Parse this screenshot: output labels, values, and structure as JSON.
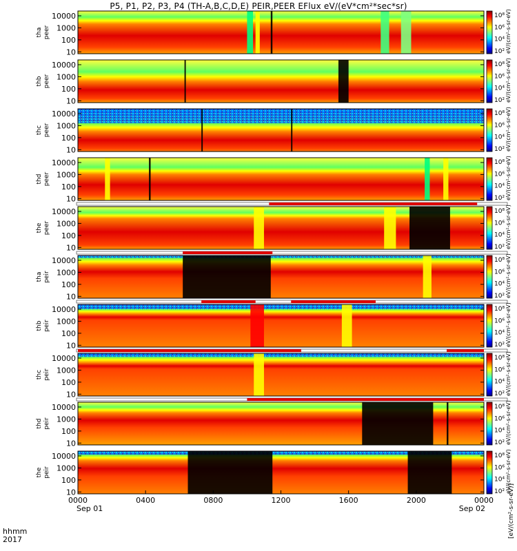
{
  "title": "P5, P1, P2, P3, P4 (TH-A,B,C,D,E) PEIR,PEER EFlux eV/(eV*cm²*sec*sr)",
  "colors": {
    "jet": [
      "#000080",
      "#0000ff",
      "#0080ff",
      "#00ffff",
      "#80ff80",
      "#ffff00",
      "#ff8000",
      "#ff0000",
      "#800000"
    ],
    "flag": "#dd0000",
    "background": "#ffffff"
  },
  "x_axis": {
    "row1_label": "hhmm",
    "row2_label": "2017",
    "ticks": [
      "0000",
      "0400",
      "0800",
      "1200",
      "1600",
      "2000",
      "0000"
    ],
    "date_labels": [
      "Sep 01",
      "Sep 02"
    ]
  },
  "colorbar": {
    "unit_label": "eV/(cm²-s-sr-eV)",
    "side_label": "[eV/(cm²-s-sr-eV)]",
    "tick_labels": [
      "10⁸",
      "10⁶",
      "10⁴",
      "10²"
    ]
  },
  "chart_data": {
    "type": "heatmap",
    "x_range_hours": [
      0,
      24
    ],
    "y_scale": "log",
    "y_range_eV": [
      7,
      25000
    ],
    "y_ticks": [
      "10000",
      "1000",
      "100",
      "10"
    ],
    "panels": [
      {
        "probe": "tha",
        "species": "peer",
        "ylabel_1": "tha",
        "ylabel_2": "peer",
        "core_top_log": 3.3,
        "core_bot_log": 1.4,
        "green_log": 3.9,
        "noisy": false,
        "flags": [],
        "features": [
          [
            10.0,
            0.35,
            "#00ff80"
          ],
          [
            10.5,
            0.25,
            "#ffff00"
          ],
          [
            11.4,
            0.1,
            "#000000"
          ],
          [
            17.9,
            0.5,
            "#40ff80"
          ],
          [
            19.1,
            0.6,
            "#80ff80"
          ]
        ]
      },
      {
        "probe": "thb",
        "species": "peer",
        "ylabel_1": "thb",
        "ylabel_2": "peer",
        "core_top_log": 2.6,
        "core_bot_log": 1.2,
        "green_log": 3.4,
        "noisy": false,
        "flags": [],
        "features": [
          [
            6.3,
            0.08,
            "#000000"
          ],
          [
            15.4,
            0.6,
            "#000000"
          ]
        ]
      },
      {
        "probe": "thc",
        "species": "peer",
        "ylabel_1": "thc",
        "ylabel_2": "peer",
        "core_top_log": 2.5,
        "core_bot_log": 1.1,
        "green_log": 3.2,
        "noisy": true,
        "flags": [],
        "features": [
          [
            7.3,
            0.08,
            "#000000"
          ],
          [
            12.6,
            0.08,
            "#000000"
          ]
        ]
      },
      {
        "probe": "thd",
        "species": "peer",
        "ylabel_1": "thd",
        "ylabel_2": "peer",
        "core_top_log": 3.0,
        "core_bot_log": 1.3,
        "green_log": 3.6,
        "noisy": false,
        "flags": [],
        "features": [
          [
            1.6,
            0.3,
            "#ffff00"
          ],
          [
            4.2,
            0.1,
            "#000000"
          ],
          [
            20.5,
            0.3,
            "#00ff80"
          ],
          [
            21.6,
            0.3,
            "#ffff00"
          ]
        ]
      },
      {
        "probe": "the",
        "species": "peer",
        "ylabel_1": "the",
        "ylabel_2": "peer",
        "core_top_log": 3.4,
        "core_bot_log": 1.2,
        "green_log": 3.9,
        "noisy": false,
        "flags": [
          [
            11.3,
            23.6
          ]
        ],
        "features": [
          [
            10.4,
            0.6,
            "#ffff00"
          ],
          [
            18.1,
            0.7,
            "#ffff00"
          ],
          [
            19.6,
            2.4,
            "#000000"
          ]
        ]
      },
      {
        "probe": "tha",
        "species": "peir",
        "ylabel_1": "tha",
        "ylabel_2": "peir",
        "core_top_log": 3.6,
        "core_bot_log": 2.5,
        "green_log": 4.2,
        "noisy": true,
        "flags": [
          [
            6.2,
            11.5
          ]
        ],
        "features": [
          [
            6.2,
            5.2,
            "#000000"
          ],
          [
            20.4,
            0.5,
            "#ffff00"
          ]
        ]
      },
      {
        "probe": "thb",
        "species": "peir",
        "ylabel_1": "thb",
        "ylabel_2": "peir",
        "core_top_log": 3.6,
        "core_bot_log": 3.1,
        "green_log": 4.0,
        "noisy": true,
        "flags": [
          [
            7.3,
            10.5
          ],
          [
            12.6,
            17.6
          ]
        ],
        "features": [
          [
            10.2,
            0.8,
            "#ff0000"
          ],
          [
            15.6,
            0.6,
            "#ffff00"
          ]
        ]
      },
      {
        "probe": "thc",
        "species": "peir",
        "ylabel_1": "thc",
        "ylabel_2": "peir",
        "core_top_log": 3.6,
        "core_bot_log": 3.1,
        "green_log": 4.1,
        "noisy": true,
        "flags": [
          [
            0.0,
            13.2
          ],
          [
            21.8,
            24.0
          ]
        ],
        "features": [
          [
            10.4,
            0.6,
            "#ffff00"
          ]
        ]
      },
      {
        "probe": "thd",
        "species": "peir",
        "ylabel_1": "thd",
        "ylabel_2": "peir",
        "core_top_log": 3.5,
        "core_bot_log": 2.3,
        "green_log": 4.0,
        "noisy": false,
        "flags": [
          [
            10.0,
            24.0
          ]
        ],
        "features": [
          [
            16.8,
            4.2,
            "#000000"
          ],
          [
            21.8,
            0.1,
            "#000000"
          ]
        ]
      },
      {
        "probe": "the",
        "species": "peir",
        "ylabel_1": "the",
        "ylabel_2": "peir",
        "core_top_log": 3.6,
        "core_bot_log": 2.3,
        "green_log": 4.1,
        "noisy": true,
        "flags": [],
        "features": [
          [
            6.5,
            5.0,
            "#000000"
          ],
          [
            19.5,
            2.6,
            "#000000"
          ]
        ]
      }
    ]
  }
}
